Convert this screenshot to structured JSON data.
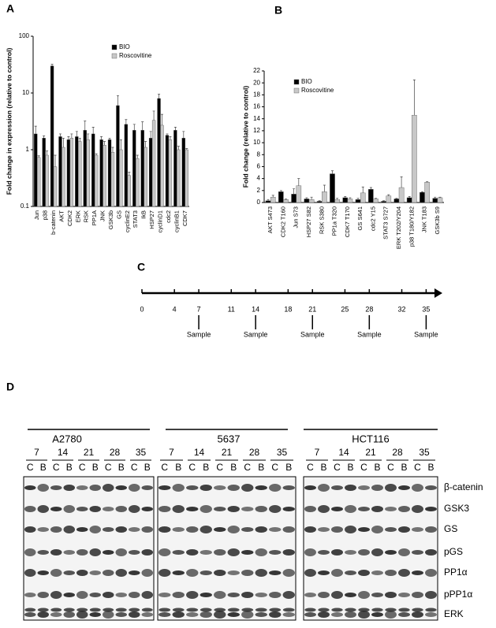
{
  "panel_labels": [
    "A",
    "B",
    "C",
    "D"
  ],
  "chart_data": [
    {
      "type": "bar",
      "y_label": "Fold change in expression (relative to control)",
      "log_scale": true,
      "ylim": [
        0.1,
        100
      ],
      "yticks": [
        0.1,
        1,
        10,
        100
      ],
      "legend": "upper right",
      "categories": [
        "Jun",
        "p38",
        "b-catenin",
        "AKT",
        "CDK2",
        "ERK",
        "RSK",
        "PP1A",
        "JNK",
        "GSK3b",
        "GS",
        "cyclinE2",
        "STAT3",
        "IkB",
        "HSP27",
        "cyclinD1",
        "cdc2",
        "cyclinB1",
        "CDK7"
      ],
      "series": [
        {
          "name": "BIO",
          "color": "#000000",
          "values": [
            1.9,
            1.6,
            30,
            1.7,
            1.5,
            1.7,
            2.2,
            1.9,
            1.5,
            1.5,
            6,
            2.8,
            2.2,
            2.2,
            1.6,
            8,
            1.8,
            2.2,
            1.6
          ],
          "errors": [
            0.7,
            0.15,
            2,
            0.2,
            0.2,
            0.4,
            1,
            0.6,
            0.2,
            0.1,
            3,
            0.6,
            0.6,
            0.9,
            0.5,
            1.5,
            0.1,
            0.3,
            0.5
          ]
        },
        {
          "name": "Roscovitine",
          "color": "#c8c8c8",
          "values": [
            0.73,
            0.8,
            0.5,
            1.1,
            1.6,
            1.4,
            1.5,
            0.8,
            1.2,
            0.9,
            1.0,
            0.35,
            0.7,
            1.1,
            3.3,
            2.7,
            1.5,
            1.0,
            1.0
          ],
          "errors": [
            0.05,
            0.15,
            0.3,
            0.5,
            0.3,
            0.2,
            0.4,
            0.05,
            0.2,
            0.2,
            0.5,
            0.05,
            0.1,
            0.3,
            1.5,
            1.5,
            0.2,
            0.15,
            0.05
          ]
        }
      ]
    },
    {
      "type": "bar",
      "y_label": "Fold change (relative to control)",
      "log_scale": false,
      "ylim": [
        0,
        22
      ],
      "yticks": [
        0,
        2,
        4,
        6,
        8,
        10,
        12,
        14,
        16,
        18,
        20,
        22
      ],
      "legend": "upper left",
      "categories": [
        "AKT S473",
        "CDK2 T160",
        "Jun S73",
        "HSP27 S82",
        "RSK S380",
        "PP1a T320",
        "CDK7 T170",
        "GS S641",
        "cdc2 Y15",
        "STAT3 S727",
        "ERK T202/Y204",
        "p38 T180/Y182",
        "JNK T183",
        "GSK3b S9"
      ],
      "series": [
        {
          "name": "BIO",
          "color": "#000000",
          "values": [
            0.3,
            1.8,
            1.4,
            0.6,
            0.2,
            4.8,
            0.8,
            0.5,
            2.2,
            0.2,
            0.6,
            0.8,
            1.7,
            0.7
          ],
          "errors": [
            0.2,
            0.2,
            0.9,
            0.2,
            0.1,
            0.5,
            0.2,
            0.2,
            0.3,
            0.1,
            0.1,
            0.2,
            0.1,
            0.2
          ]
        },
        {
          "name": "Roscovitine",
          "color": "#c8c8c8",
          "values": [
            0.9,
            0.5,
            2.8,
            0.5,
            1.8,
            0.5,
            0.6,
            1.6,
            0.6,
            1.1,
            2.5,
            14.6,
            3.4,
            0.8
          ],
          "errors": [
            0.3,
            0.1,
            1.2,
            0.4,
            1.1,
            0.2,
            0.2,
            1.0,
            0.1,
            0.2,
            1.8,
            5.9,
            0.1,
            0.1
          ]
        }
      ]
    }
  ],
  "timeline": {
    "xlim": [
      0,
      37
    ],
    "ticks": [
      0,
      4,
      7,
      11,
      14,
      18,
      21,
      25,
      28,
      32,
      35
    ],
    "sample_days": [
      7,
      14,
      21,
      28,
      35
    ],
    "sample_label": "Sample"
  },
  "blot": {
    "groups": [
      {
        "name": "A2780"
      },
      {
        "name": "5637"
      },
      {
        "name": "HCT116"
      }
    ],
    "days": [
      7,
      14,
      21,
      28,
      35
    ],
    "lanes": [
      "C",
      "B"
    ],
    "proteins": [
      "β-catenin",
      "GSK3",
      "GS",
      "pGS",
      "PP1α",
      "pPP1α",
      "ERK"
    ]
  }
}
